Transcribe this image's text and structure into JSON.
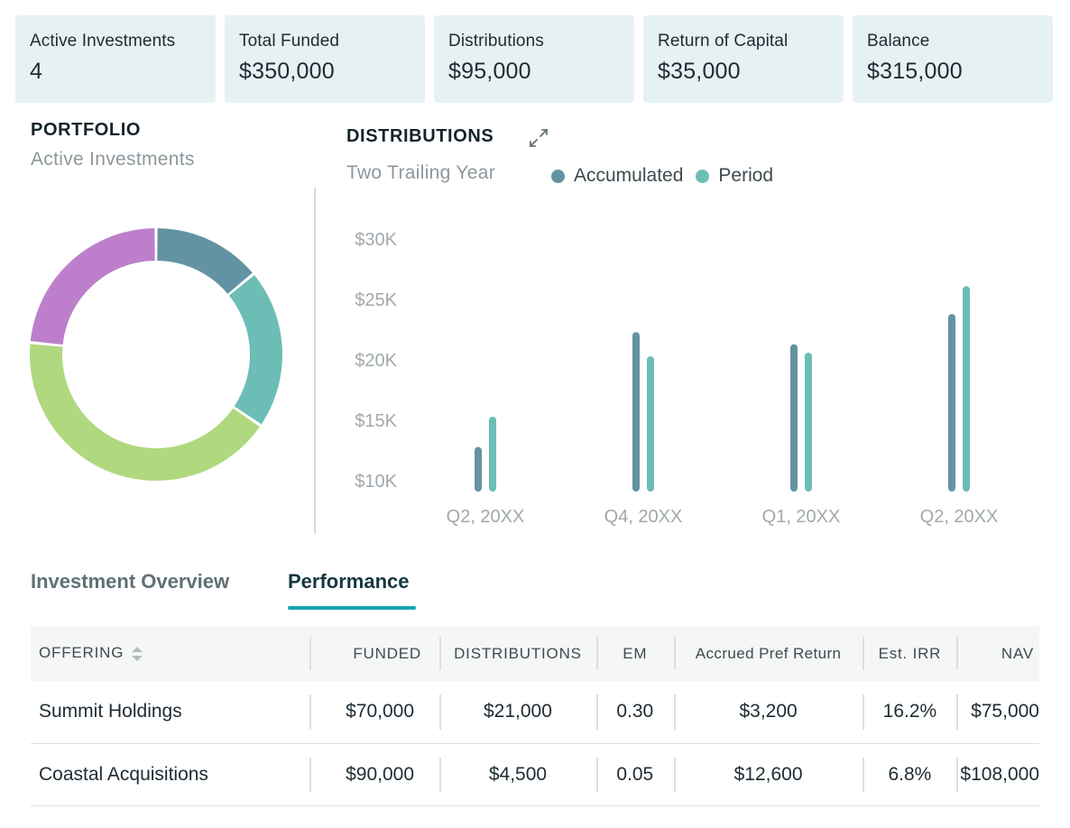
{
  "summary_cards": [
    {
      "label": "Active Investments",
      "value": "4"
    },
    {
      "label": "Total Funded",
      "value": "$350,000"
    },
    {
      "label": "Distributions",
      "value": "$95,000"
    },
    {
      "label": "Return of Capital",
      "value": "$35,000"
    },
    {
      "label": "Balance",
      "value": "$315,000"
    }
  ],
  "portfolio": {
    "title": "PORTFOLIO",
    "subtitle": "Active Investments",
    "segments": [
      {
        "share": 0.14,
        "color": "#6393a3"
      },
      {
        "share": 0.205,
        "color": "#6cbdb6"
      },
      {
        "share": 0.42,
        "color": "#b0d87f"
      },
      {
        "share": 0.235,
        "color": "#bd7fcb"
      }
    ]
  },
  "distributions": {
    "title": "DISTRIBUTIONS",
    "subtitle": "Two Trailing Year",
    "expand_icon": "expand-icon"
  },
  "chart_data": {
    "type": "bar",
    "title": "DISTRIBUTIONS",
    "subtitle": "Two Trailing Year",
    "categories": [
      "Q2, 20XX",
      "Q4, 20XX",
      "Q1, 20XX",
      "Q2, 20XX"
    ],
    "series": [
      {
        "name": "Accumulated",
        "color": "#6393a3",
        "values": [
          12500,
          22000,
          21000,
          23500
        ]
      },
      {
        "name": "Period",
        "color": "#6cbdb6",
        "values": [
          15000,
          20000,
          20300,
          25800
        ]
      }
    ],
    "yticks": [
      "$30K",
      "$25K",
      "$20K",
      "$15K",
      "$10K"
    ],
    "ytick_values": [
      30000,
      25000,
      20000,
      15000,
      10000
    ],
    "ylim": [
      10000,
      30000
    ],
    "legend": "top"
  },
  "tabs": [
    {
      "label": "Investment Overview",
      "active": false
    },
    {
      "label": "Performance",
      "active": true
    }
  ],
  "table": {
    "headers": {
      "offering": "OFFERING",
      "funded": "FUNDED",
      "distributions": "DISTRIBUTIONS",
      "em": "EM",
      "pref": "Accrued Pref Return",
      "irr": "Est. IRR",
      "nav": "NAV"
    },
    "rows": [
      {
        "offering": "Summit Holdings",
        "funded": "$70,000",
        "distributions": "$21,000",
        "em": "0.30",
        "pref": "$3,200",
        "irr": "16.2%",
        "nav": "$75,000"
      },
      {
        "offering": "Coastal Acquisitions",
        "funded": "$90,000",
        "distributions": "$4,500",
        "em": "0.05",
        "pref": "$12,600",
        "irr": "6.8%",
        "nav": "$108,000"
      }
    ]
  }
}
